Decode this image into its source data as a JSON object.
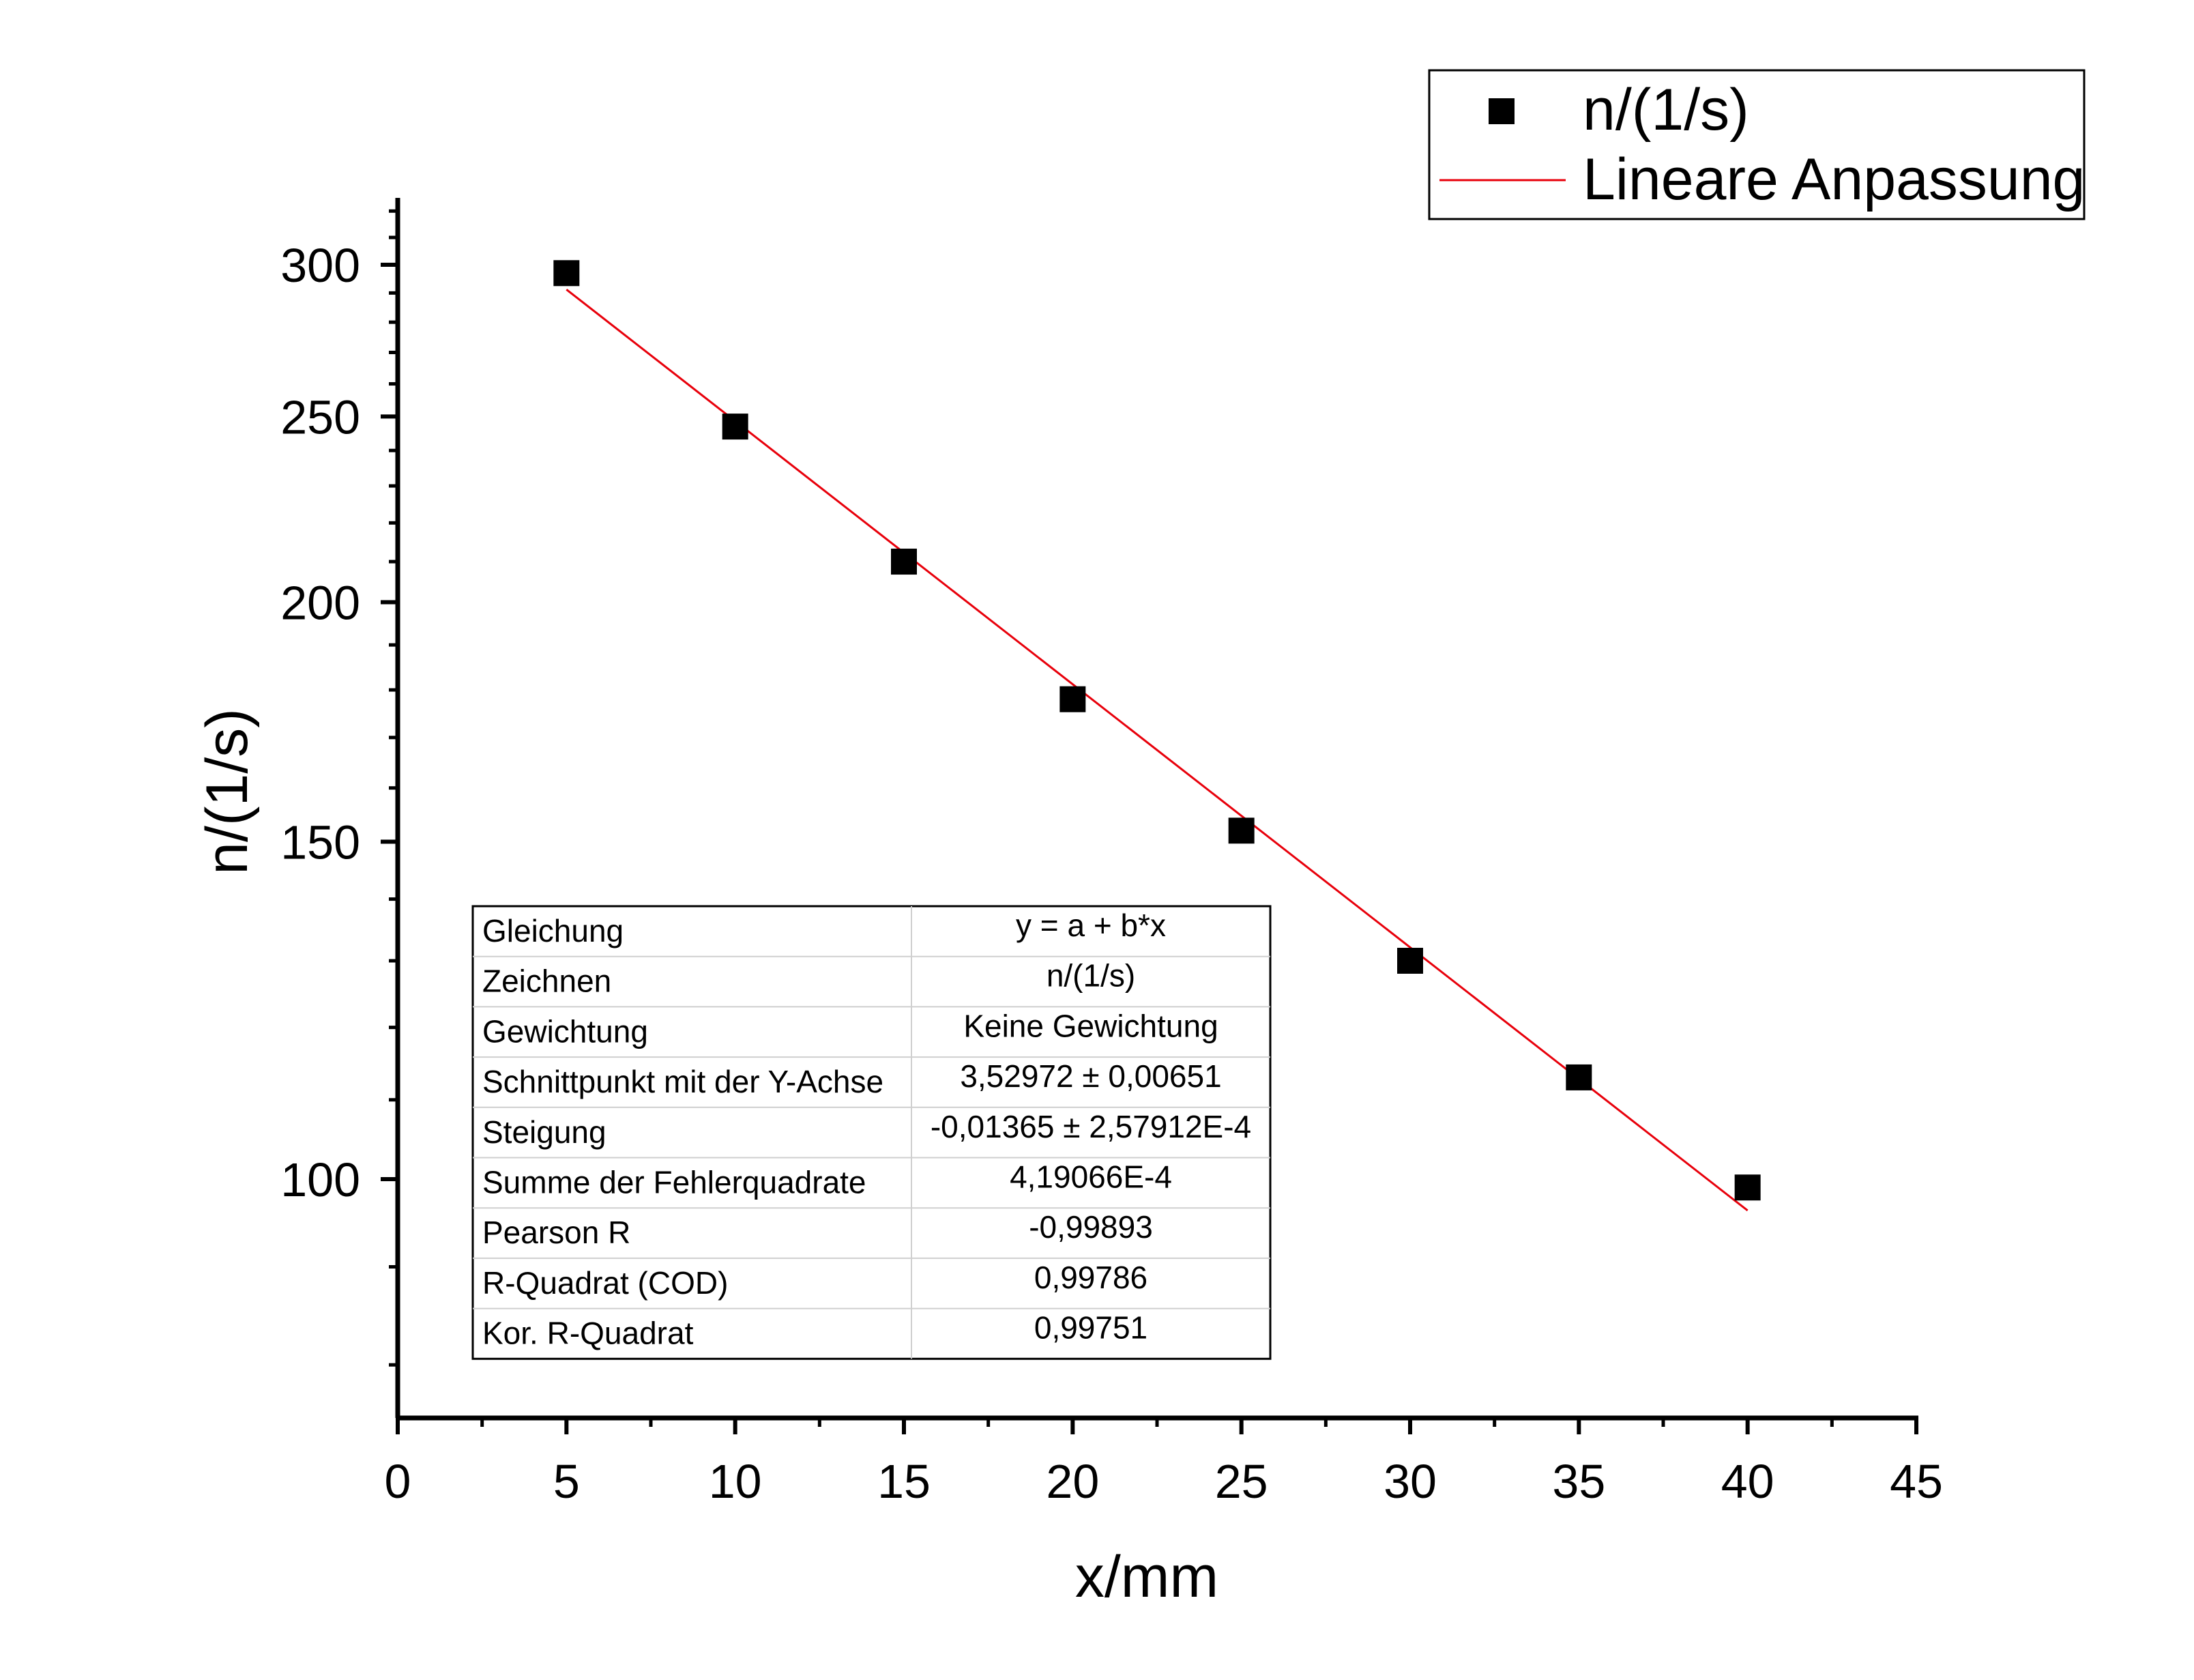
{
  "chart_data": {
    "type": "scatter",
    "xlabel": "x/mm",
    "ylabel": "n/(1/s)",
    "xlim": [
      0,
      45
    ],
    "ylim": [
      80,
      320
    ],
    "y_scale": "log",
    "x_ticks": [
      0,
      5,
      10,
      15,
      20,
      25,
      30,
      35,
      40,
      45
    ],
    "y_ticks": [
      100,
      150,
      200,
      250,
      300
    ],
    "grid": false,
    "legend_position": "top-right",
    "series": [
      {
        "name": "n/(1/s)",
        "marker": "square",
        "color": "#000000",
        "x": [
          5,
          10,
          15,
          20,
          25,
          30,
          35,
          40
        ],
        "y": [
          297,
          247,
          210,
          178,
          152,
          130,
          113,
          99
        ]
      },
      {
        "name": "Lineare Anpassung",
        "type": "line",
        "color": "#e8000b",
        "x": [
          5,
          40
        ],
        "y": [
          291.2,
          96.3
        ]
      }
    ],
    "fit_table": [
      {
        "label": "Gleichung",
        "value": "y = a + b*x"
      },
      {
        "label": "Zeichnen",
        "value": "n/(1/s)"
      },
      {
        "label": "Gewichtung",
        "value": "Keine Gewichtung"
      },
      {
        "label": "Schnittpunkt mit der Y-Achse",
        "value": "3,52972 ± 0,00651"
      },
      {
        "label": "Steigung",
        "value": "-0,01365 ± 2,57912E-4"
      },
      {
        "label": "Summe der Fehlerquadrate",
        "value": "4,19066E-4"
      },
      {
        "label": "Pearson R",
        "value": "-0,99893"
      },
      {
        "label": "R-Quadrat (COD)",
        "value": "0,99786"
      },
      {
        "label": "Kor. R-Quadrat",
        "value": "0,99751"
      }
    ]
  }
}
